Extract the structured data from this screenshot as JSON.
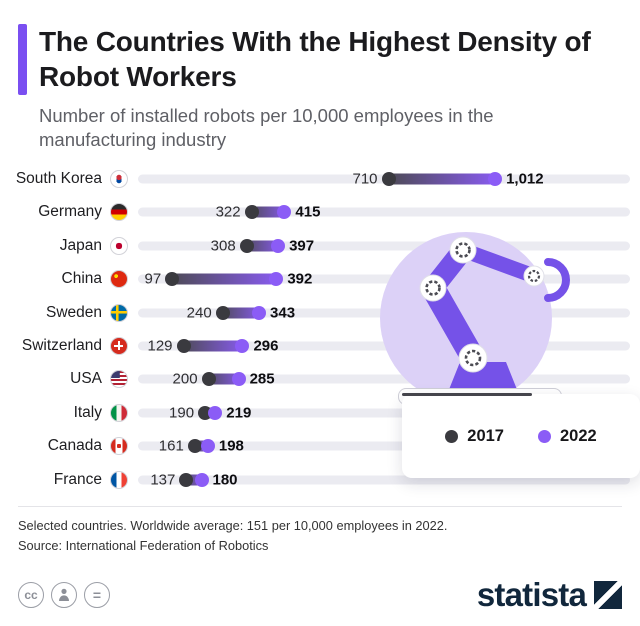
{
  "header": {
    "title": "The Countries With the Highest Density of Robot Workers",
    "subtitle": "Number of installed robots per 10,000 employees in the manufacturing industry",
    "accent_color": "#7a4ff1"
  },
  "chart_data": {
    "type": "bar",
    "subtype": "dumbbell",
    "title": "The Countries With the Highest Density of Robot Workers",
    "subtitle": "Number of installed robots per 10,000 employees in the manufacturing industry",
    "categories": [
      "South Korea",
      "Germany",
      "Japan",
      "China",
      "Sweden",
      "Switzerland",
      "USA",
      "Italy",
      "Canada",
      "France"
    ],
    "flags": [
      "kr",
      "de",
      "jp",
      "cn",
      "se",
      "ch",
      "us",
      "it",
      "ca",
      "fr"
    ],
    "series": [
      {
        "name": "2017",
        "color": "#3a3a3f",
        "values": [
          710,
          322,
          308,
          97,
          240,
          129,
          200,
          190,
          161,
          137
        ]
      },
      {
        "name": "2022",
        "color": "#8b5cf6",
        "values": [
          1012,
          415,
          397,
          392,
          343,
          296,
          285,
          219,
          198,
          180
        ]
      }
    ],
    "xlabel": "",
    "ylabel": "",
    "xlim": [
      0,
      1400
    ],
    "grid": false,
    "legend_position": "bottom-right",
    "track_color": "#ebebf1",
    "segment_gradient_start": "#4a4a4e"
  },
  "legend": {
    "items": [
      {
        "label": "2017",
        "color": "#3a3a3f"
      },
      {
        "label": "2022",
        "color": "#8b5cf6"
      }
    ]
  },
  "footer": {
    "note": "Selected countries. Worldwide average: 151 per 10,000 employees in 2022.",
    "source": "Source: International Federation of Robotics"
  },
  "badges": [
    {
      "name": "cc-icon",
      "glyph": "cc"
    },
    {
      "name": "attribution-icon",
      "glyph": ""
    },
    {
      "name": "nd-icon",
      "glyph": "="
    }
  ],
  "branding": {
    "logo_text": "statista",
    "logo_color": "#11273c"
  }
}
